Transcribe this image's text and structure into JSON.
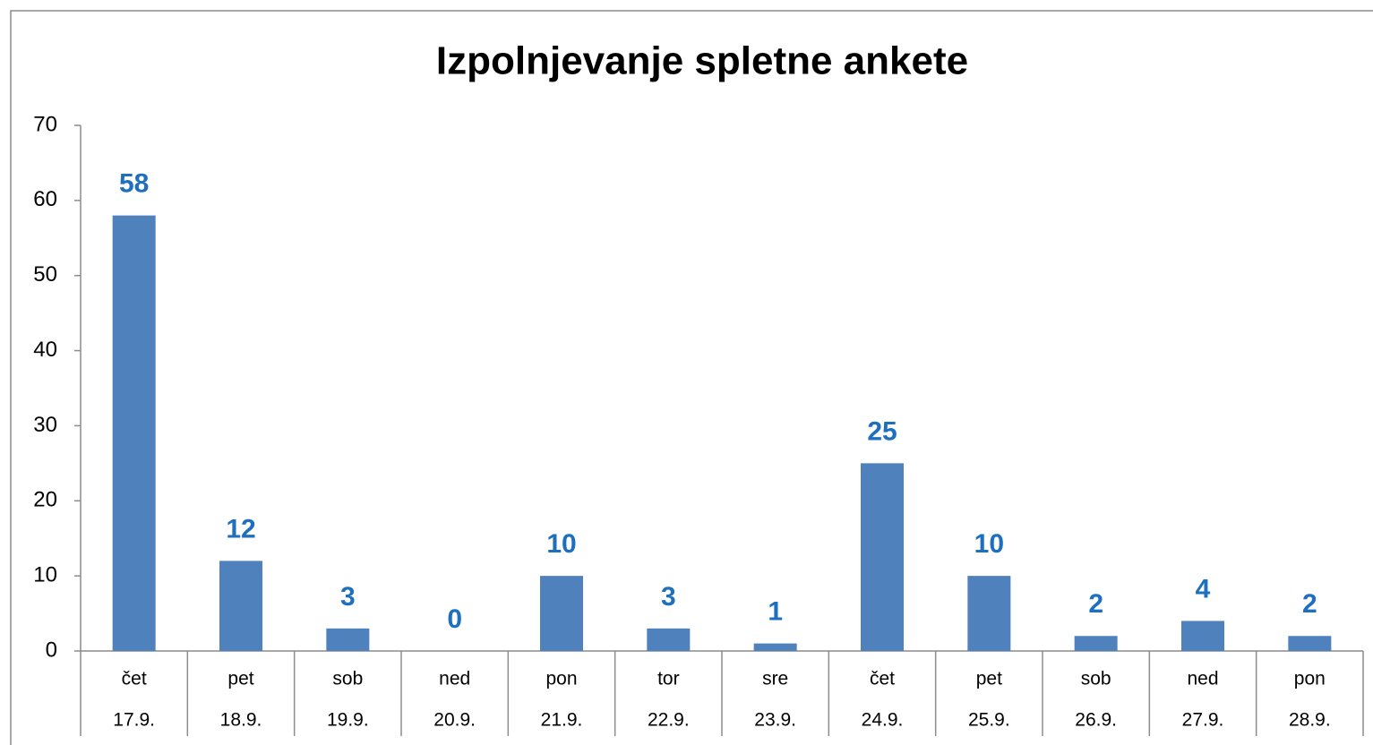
{
  "chart_data": {
    "type": "bar",
    "title": "Izpolnjevanje spletne ankete",
    "categories": [
      "17.9.",
      "18.9.",
      "19.9.",
      "20.9.",
      "21.9.",
      "22.9.",
      "23.9.",
      "24.9.",
      "25.9.",
      "26.9.",
      "27.9.",
      "28.9."
    ],
    "weekdays": [
      "čet",
      "pet",
      "sob",
      "ned",
      "pon",
      "tor",
      "sre",
      "čet",
      "pet",
      "sob",
      "ned",
      "pon"
    ],
    "values": [
      58,
      12,
      3,
      0,
      10,
      3,
      1,
      25,
      10,
      2,
      4,
      2
    ],
    "color": "#4f81bd",
    "label_color": "#1f6fbf",
    "ylim": [
      0,
      70
    ],
    "yticks": [
      0,
      10,
      20,
      30,
      40,
      50,
      60,
      70
    ],
    "grid": false
  }
}
